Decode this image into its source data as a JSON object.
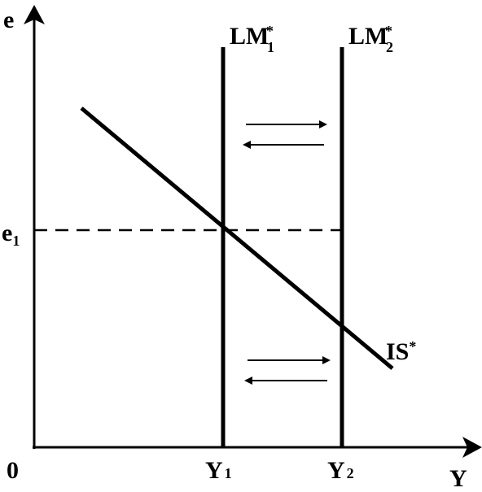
{
  "axes": {
    "y_label": "e",
    "x_label": "Y",
    "origin": "0"
  },
  "levels": {
    "e1": {
      "base": "e",
      "sub": "1"
    },
    "y1": {
      "base": "Y",
      "sub": "1"
    },
    "y2": {
      "base": "Y",
      "sub": "2"
    }
  },
  "curves": {
    "lm1": {
      "base": "LM",
      "sup": "*",
      "sub": "1"
    },
    "lm2": {
      "base": "LM",
      "sup": "*",
      "sub": "2"
    },
    "is": {
      "base": "IS",
      "sup": "*"
    }
  }
}
